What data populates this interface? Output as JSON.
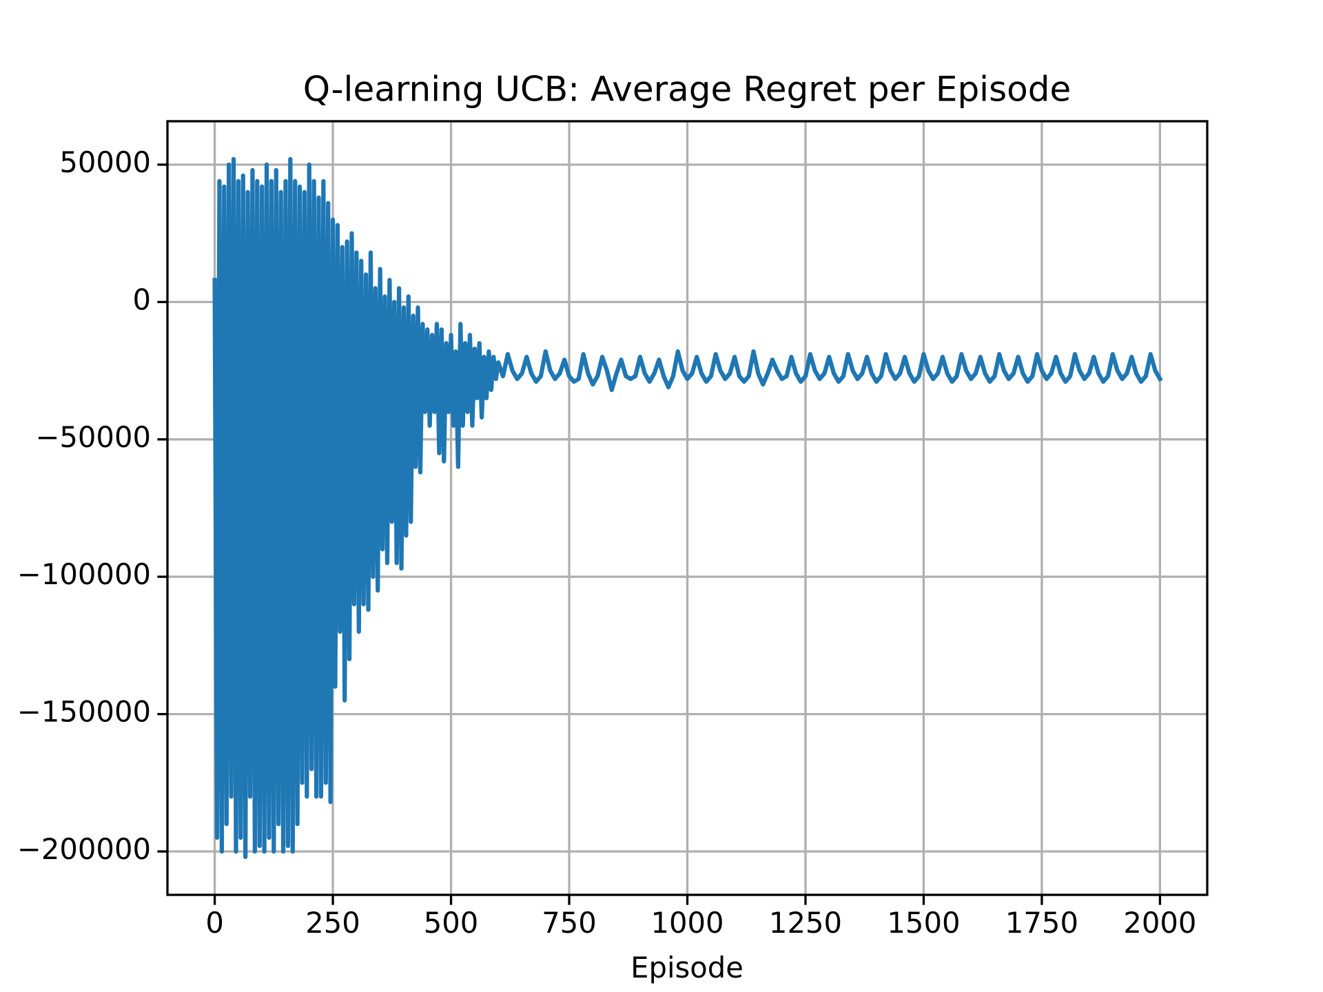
{
  "chart_data": {
    "type": "line",
    "title": "Q-learning UCB: Average Regret per Episode",
    "xlabel": "Episode",
    "color": "#1f77b4",
    "grid": true,
    "xlim": [
      -100,
      2100
    ],
    "ylim": [
      -215800,
      65800
    ],
    "xticks": [
      0,
      250,
      500,
      750,
      1000,
      1250,
      1500,
      1750,
      2000
    ],
    "yticks": [
      {
        "value": -200000,
        "label": "−200000"
      },
      {
        "value": -150000,
        "label": "−150000"
      },
      {
        "value": -100000,
        "label": "−100000"
      },
      {
        "value": -50000,
        "label": "−50000"
      },
      0,
      50000
    ],
    "x": [
      0,
      5,
      10,
      15,
      20,
      25,
      30,
      35,
      40,
      45,
      50,
      55,
      60,
      65,
      70,
      75,
      80,
      85,
      90,
      95,
      100,
      105,
      110,
      115,
      120,
      125,
      130,
      135,
      140,
      145,
      150,
      155,
      160,
      165,
      170,
      175,
      180,
      185,
      190,
      195,
      200,
      205,
      210,
      215,
      220,
      225,
      230,
      235,
      240,
      245,
      250,
      255,
      260,
      265,
      270,
      275,
      280,
      285,
      290,
      295,
      300,
      305,
      310,
      315,
      320,
      325,
      330,
      335,
      340,
      345,
      350,
      355,
      360,
      365,
      370,
      375,
      380,
      385,
      390,
      395,
      400,
      405,
      410,
      415,
      420,
      425,
      430,
      435,
      440,
      445,
      450,
      455,
      460,
      465,
      470,
      475,
      480,
      485,
      490,
      495,
      500,
      505,
      510,
      515,
      520,
      525,
      530,
      535,
      540,
      545,
      550,
      555,
      560,
      565,
      570,
      575,
      580,
      585,
      590,
      595,
      600,
      610,
      620,
      630,
      640,
      650,
      660,
      670,
      680,
      690,
      700,
      710,
      720,
      730,
      740,
      750,
      760,
      770,
      780,
      790,
      800,
      810,
      820,
      830,
      840,
      850,
      860,
      870,
      880,
      890,
      900,
      910,
      920,
      930,
      940,
      950,
      960,
      970,
      980,
      990,
      1000,
      1010,
      1020,
      1030,
      1040,
      1050,
      1060,
      1070,
      1080,
      1090,
      1100,
      1110,
      1120,
      1130,
      1140,
      1150,
      1160,
      1170,
      1180,
      1190,
      1200,
      1210,
      1220,
      1230,
      1240,
      1250,
      1260,
      1270,
      1280,
      1290,
      1300,
      1310,
      1320,
      1330,
      1340,
      1350,
      1360,
      1370,
      1380,
      1390,
      1400,
      1410,
      1420,
      1430,
      1440,
      1450,
      1460,
      1470,
      1480,
      1490,
      1500,
      1510,
      1520,
      1530,
      1540,
      1550,
      1560,
      1570,
      1580,
      1590,
      1600,
      1610,
      1620,
      1630,
      1640,
      1650,
      1660,
      1670,
      1680,
      1690,
      1700,
      1710,
      1720,
      1730,
      1740,
      1750,
      1760,
      1770,
      1780,
      1790,
      1800,
      1810,
      1820,
      1830,
      1840,
      1850,
      1860,
      1870,
      1880,
      1890,
      1900,
      1910,
      1920,
      1930,
      1940,
      1950,
      1960,
      1970,
      1980,
      1990,
      2000
    ],
    "values": [
      8000,
      -195000,
      44000,
      -200000,
      42000,
      -190000,
      50000,
      -180000,
      52000,
      -200000,
      44000,
      -195000,
      46000,
      -202000,
      40000,
      -180000,
      48000,
      -200000,
      44000,
      -198000,
      42000,
      -200000,
      50000,
      -195000,
      44000,
      -200000,
      48000,
      -190000,
      40000,
      -200000,
      44000,
      -198000,
      52000,
      -200000,
      44000,
      -190000,
      42000,
      -175000,
      40000,
      -180000,
      50000,
      -170000,
      44000,
      -180000,
      38000,
      -180000,
      44000,
      -175000,
      36000,
      -182000,
      30000,
      -140000,
      28000,
      -120000,
      20000,
      -145000,
      22000,
      -130000,
      25000,
      -110000,
      18000,
      -120000,
      15000,
      -110000,
      10000,
      -112000,
      18000,
      -100000,
      5000,
      -105000,
      12000,
      -90000,
      2000,
      -95000,
      8000,
      -80000,
      0,
      -95000,
      5000,
      -97000,
      -2000,
      -85000,
      2000,
      -80000,
      -5000,
      -60000,
      -2000,
      -62000,
      -8000,
      -40000,
      -10000,
      -45000,
      -12000,
      -40000,
      -8000,
      -55000,
      -10000,
      -58000,
      -15000,
      -40000,
      -12000,
      -45000,
      -18000,
      -60000,
      -8000,
      -45000,
      -15000,
      -40000,
      -12000,
      -45000,
      -17000,
      -35000,
      -15000,
      -42000,
      -20000,
      -35000,
      -18000,
      -32000,
      -20000,
      -28000,
      -22000,
      -27000,
      -19000,
      -25000,
      -28000,
      -26000,
      -20000,
      -26000,
      -29000,
      -27000,
      -18000,
      -25000,
      -28000,
      -26000,
      -21000,
      -27000,
      -29000,
      -28000,
      -19000,
      -26000,
      -30000,
      -27000,
      -20000,
      -25000,
      -32000,
      -26000,
      -21000,
      -27000,
      -28000,
      -27000,
      -20000,
      -26000,
      -29000,
      -26000,
      -21000,
      -27000,
      -31000,
      -27000,
      -18000,
      -25000,
      -28000,
      -26000,
      -20000,
      -26000,
      -29000,
      -27000,
      -19000,
      -25000,
      -28000,
      -26000,
      -20000,
      -27000,
      -29000,
      -27000,
      -18000,
      -26000,
      -30000,
      -26000,
      -21000,
      -25000,
      -28000,
      -27000,
      -20000,
      -26000,
      -29000,
      -27000,
      -19000,
      -25000,
      -28000,
      -26000,
      -20000,
      -26000,
      -29000,
      -27000,
      -19000,
      -25000,
      -28000,
      -26000,
      -20000,
      -26000,
      -29000,
      -27000,
      -19000,
      -25000,
      -28000,
      -26000,
      -20000,
      -26000,
      -29000,
      -27000,
      -19000,
      -25000,
      -28000,
      -26000,
      -20000,
      -26000,
      -29000,
      -27000,
      -19000,
      -25000,
      -28000,
      -26000,
      -20000,
      -26000,
      -29000,
      -27000,
      -19000,
      -25000,
      -28000,
      -26000,
      -20000,
      -26000,
      -29000,
      -27000,
      -19000,
      -25000,
      -28000,
      -26000,
      -20000,
      -26000,
      -29000,
      -27000,
      -19000,
      -25000,
      -28000,
      -26000,
      -20000,
      -26000,
      -29000,
      -27000,
      -19000,
      -25000,
      -28000,
      -26000,
      -20000,
      -26000,
      -29000,
      -27000,
      -19000,
      -25000,
      -28000
    ]
  }
}
